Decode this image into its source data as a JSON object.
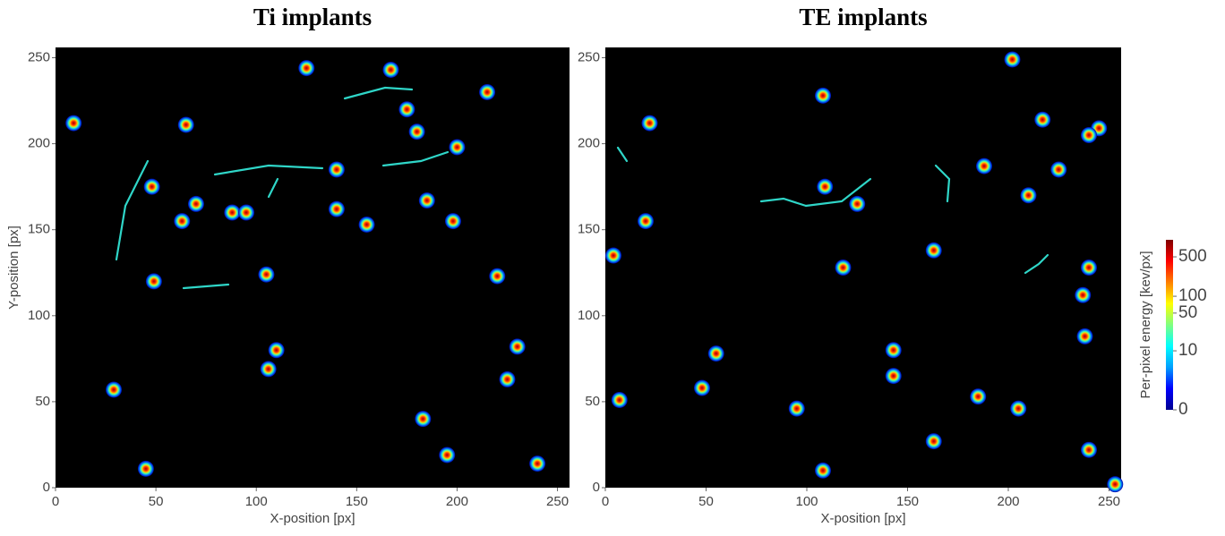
{
  "chart_data": [
    {
      "type": "scatter",
      "title": "Ti implants",
      "xlabel": "X-position [px]",
      "ylabel": "Y-position [px]",
      "xlim": [
        0,
        256
      ],
      "ylim": [
        0,
        256
      ],
      "xticks": [
        0,
        50,
        100,
        150,
        200,
        250
      ],
      "yticks": [
        0,
        50,
        100,
        150,
        200,
        250
      ],
      "x": [
        9,
        48,
        63,
        88,
        95,
        155,
        198,
        49,
        105,
        110,
        106,
        29,
        225,
        195,
        125,
        175,
        215,
        200,
        220,
        140,
        140,
        65,
        180,
        230,
        240,
        167,
        185,
        70,
        183,
        45
      ],
      "y": [
        212,
        175,
        155,
        160,
        160,
        153,
        155,
        120,
        124,
        80,
        69,
        57,
        63,
        19,
        244,
        220,
        230,
        198,
        123,
        185,
        162,
        211,
        207,
        82,
        14,
        243,
        167,
        165,
        40,
        11
      ],
      "colormap": "jet"
    },
    {
      "type": "scatter",
      "title": "TE implants",
      "xlabel": "X-position [px]",
      "xlim": [
        0,
        256
      ],
      "ylim": [
        0,
        256
      ],
      "xticks": [
        0,
        50,
        100,
        150,
        200,
        250
      ],
      "yticks": [
        0,
        50,
        100,
        150,
        200,
        250
      ],
      "x": [
        55,
        108,
        108,
        202,
        245,
        240,
        118,
        217,
        240,
        237,
        238,
        188,
        125,
        109,
        143,
        143,
        48,
        205,
        95,
        163,
        163,
        210,
        225,
        185,
        240,
        7,
        20,
        253,
        4,
        22
      ],
      "y": [
        78,
        10,
        228,
        249,
        209,
        205,
        128,
        214,
        128,
        112,
        88,
        187,
        165,
        175,
        65,
        80,
        58,
        46,
        46,
        138,
        27,
        170,
        185,
        53,
        22,
        51,
        155,
        2,
        135,
        212
      ],
      "colormap": "jet",
      "colorbar": {
        "label": "Per-pixel energy [kev/px]",
        "lim": [
          0,
          1000
        ],
        "scale": "log1p",
        "ticks": [
          0,
          10,
          50,
          100,
          500
        ]
      }
    }
  ]
}
